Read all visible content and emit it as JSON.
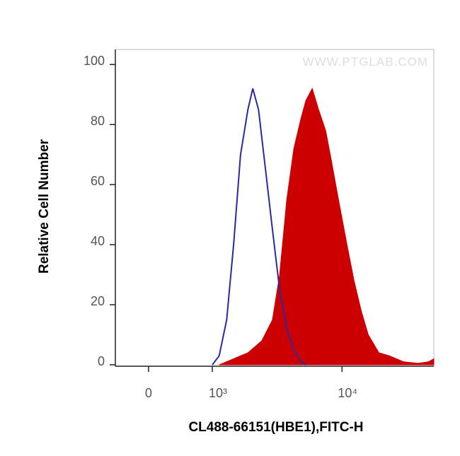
{
  "chart_data": {
    "type": "histogram-overlay",
    "watermark": "WWW.PTGLAB.COM",
    "xlabel": "CL488-66151(HBE1),FITC-H",
    "ylabel": "Relative Cell Number",
    "xscale": "biexponential",
    "xlim": [
      -520,
      51000
    ],
    "ylim": [
      0,
      105
    ],
    "xticks": [
      0,
      {
        "value": 1000,
        "label": "10³"
      },
      {
        "value": 10000,
        "label": "10⁴"
      }
    ],
    "yticks": [
      0,
      20,
      40,
      60,
      80,
      100
    ],
    "series": [
      {
        "style": "filled",
        "color": "#cc0000",
        "x": [
          1130,
          1460,
          1880,
          2410,
          2910,
          3300,
          3750,
          4250,
          4820,
          5260,
          5890,
          6600,
          7480,
          8280,
          9390,
          10920,
          12380,
          14050,
          15930,
          19230,
          23230,
          29870,
          38450,
          46400,
          51000
        ],
        "values": [
          0,
          2,
          4,
          8,
          15,
          30,
          55,
          72,
          82,
          88,
          92,
          85,
          78,
          68,
          55,
          40,
          28,
          18,
          10,
          4,
          3,
          1,
          0.5,
          1,
          2
        ]
      },
      {
        "style": "line",
        "color": "#2a2aa0",
        "x": [
          1000,
          1130,
          1290,
          1460,
          1650,
          1880,
          2050,
          2270,
          2570,
          2910,
          3300,
          3750,
          4250,
          4820,
          5260
        ],
        "values": [
          0,
          3,
          15,
          40,
          70,
          85,
          92,
          85,
          65,
          45,
          25,
          12,
          5,
          1,
          0
        ]
      }
    ]
  }
}
